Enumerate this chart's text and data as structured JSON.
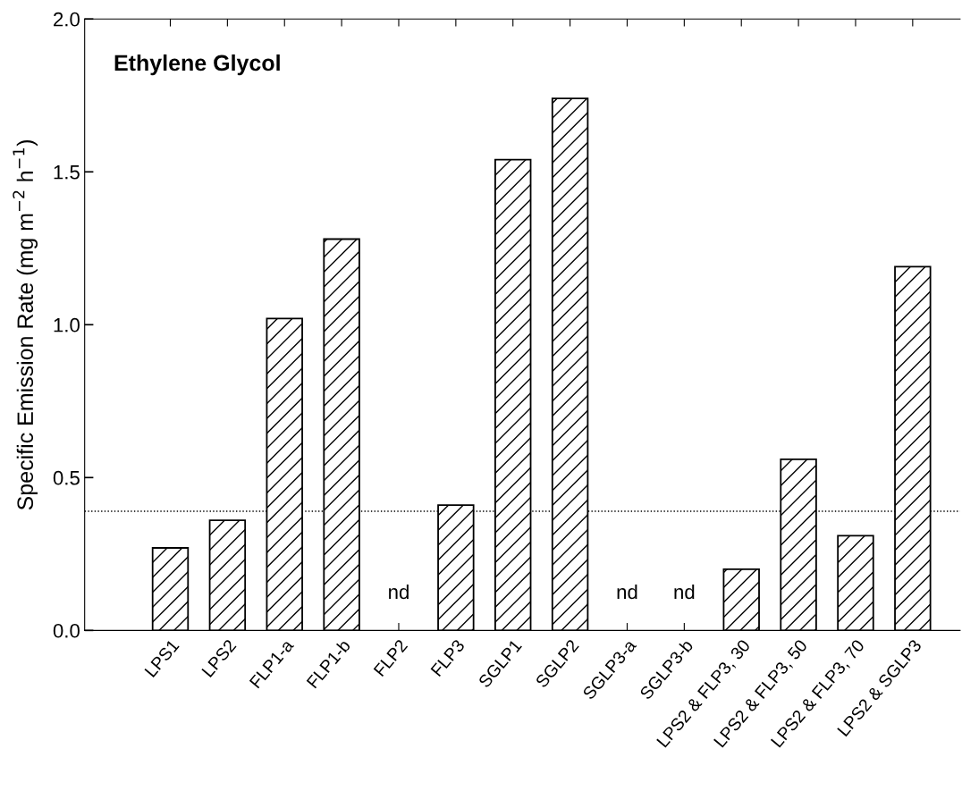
{
  "chart_data": {
    "type": "bar",
    "title": "Ethylene Glycol",
    "ylabel": "Specific Emission Rate (mg m$^{−2}$ h$^{−1}$)",
    "categories": [
      "LPS1",
      "LPS2",
      "FLP1-a",
      "FLP1-b",
      "FLP2",
      "FLP3",
      "SGLP1",
      "SGLP2",
      "SGLP3-a",
      "SGLP3-b",
      "LPS2 & FLP3, 30",
      "LPS2 & FLP3, 50",
      "LPS2 & FLP3, 70",
      "LPS2 & SGLP3"
    ],
    "values": [
      0.27,
      0.36,
      1.02,
      1.28,
      null,
      0.41,
      1.54,
      1.74,
      null,
      null,
      0.2,
      0.56,
      0.31,
      1.19
    ],
    "color": "#000000",
    "ylim": [
      0,
      2.0
    ],
    "yticks": [
      {
        "value": 0,
        "label": "0.0"
      },
      0.5,
      {
        "value": 1.0,
        "label": "1.0"
      },
      1.5,
      {
        "value": 2.0,
        "label": "2.0"
      }
    ],
    "ref_lines": [
      {
        "axis": "y",
        "value": 0.39,
        "color": "#000000",
        "line_style": "dotted"
      }
    ],
    "annotations": [
      "nd",
      "nd",
      "nd"
    ],
    "grid": false,
    "legend": false
  }
}
